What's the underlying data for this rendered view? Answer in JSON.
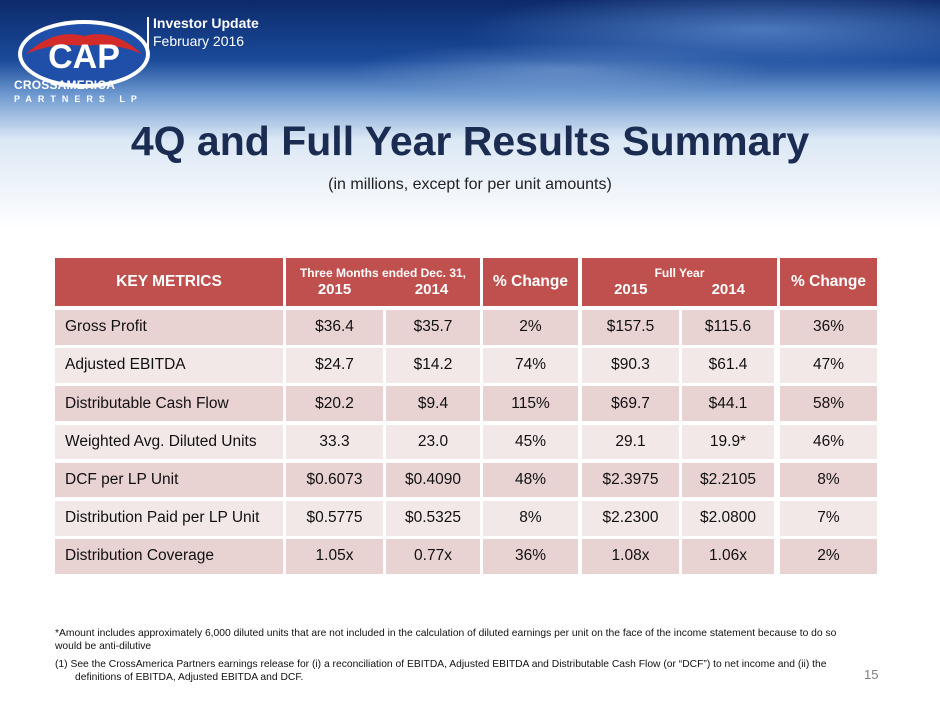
{
  "header": {
    "logo_name": "CROSSAMERICA",
    "logo_sub": "PARTNERS LP",
    "update_title": "Investor Update",
    "update_date": "February 2016"
  },
  "title": "4Q and Full Year Results Summary",
  "subtitle": "(in millions, except for per unit amounts)",
  "table": {
    "h_metrics": "KEY METRICS",
    "h_three_months": "Three Months ended Dec. 31,",
    "h_full_year": "Full Year",
    "h_year_a": "2015",
    "h_year_b": "2014",
    "h_change": "% Change",
    "rows": [
      [
        "Gross Profit",
        "$36.4",
        "$35.7",
        "2%",
        "$157.5",
        "$115.6",
        "36%"
      ],
      [
        "Adjusted EBITDA",
        "$24.7",
        "$14.2",
        "74%",
        "$90.3",
        "$61.4",
        "47%"
      ],
      [
        "Distributable Cash Flow",
        "$20.2",
        "$9.4",
        "115%",
        "$69.7",
        "$44.1",
        "58%"
      ],
      [
        "Weighted Avg. Diluted Units",
        "33.3",
        "23.0",
        "45%",
        "29.1",
        "19.9*",
        "46%"
      ],
      [
        "DCF per LP Unit",
        "$0.6073",
        "$0.4090",
        "48%",
        "$2.3975",
        "$2.2105",
        "8%"
      ],
      [
        "Distribution Paid per LP Unit",
        "$0.5775",
        "$0.5325",
        "8%",
        "$2.2300",
        "$2.0800",
        "7%"
      ],
      [
        "Distribution Coverage",
        "1.05x",
        "0.77x",
        "36%",
        "1.08x",
        "1.06x",
        "2%"
      ]
    ]
  },
  "footnotes": {
    "asterisk": "*Amount includes approximately 6,000 diluted units that are not included in the calculation of diluted earnings per unit on the face of the income statement because to do so would be anti-dilutive",
    "note1": "(1)  See the CrossAmerica Partners earnings release for (i) a reconciliation of EBITDA, Adjusted EBITDA and Distributable Cash Flow (or “DCF”) to net income and (ii) the definitions of EBITDA, Adjusted EBITDA and DCF."
  },
  "page_number": "15",
  "colors": {
    "header_fill": "#c0504d",
    "row_odd": "#e8d2d2",
    "row_even": "#f3e8e8",
    "title": "#1b2c52",
    "logo_red": "#d32a2a",
    "logo_blue": "#1f4fa8"
  }
}
